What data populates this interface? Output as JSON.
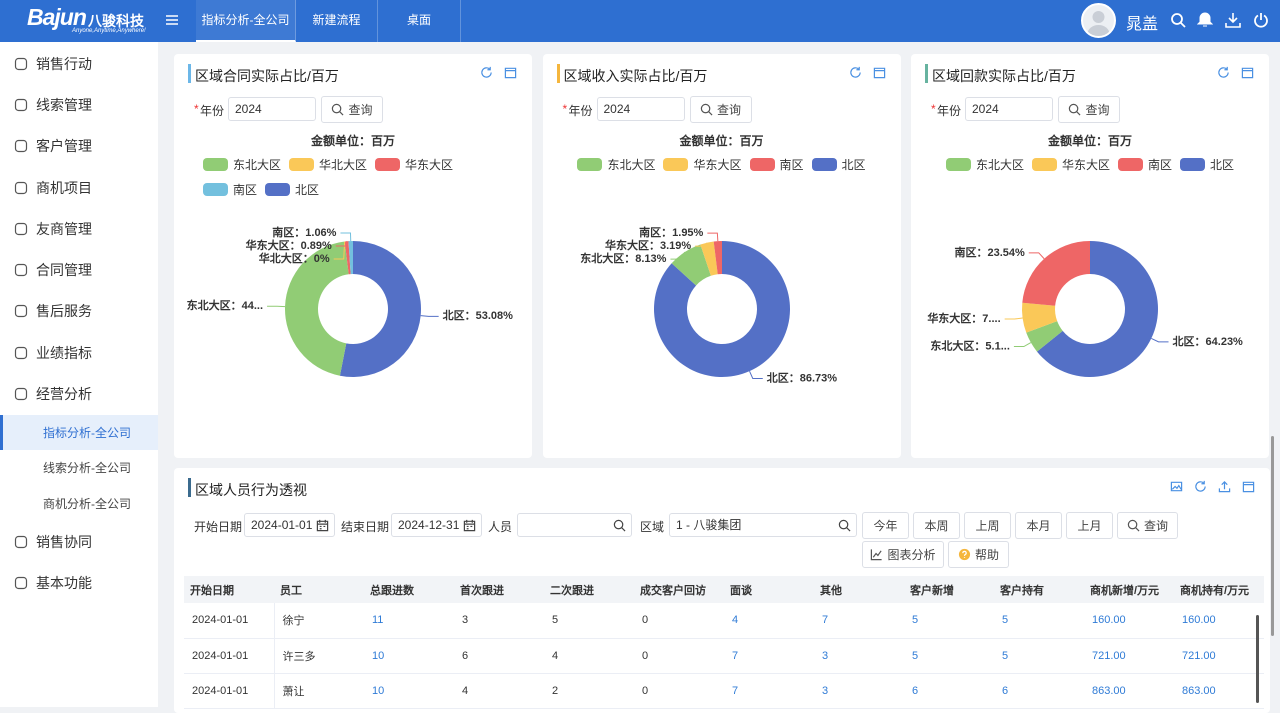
{
  "header": {
    "logo": "Bajun",
    "logo_cn": "八骏科技",
    "slogan": "Anyone,Anytime,Anywhere!",
    "tabs": [
      "指标分析-全公司",
      "新建流程",
      "桌面"
    ],
    "user": "晁盖"
  },
  "sidebar": {
    "menu": [
      {
        "label": "销售行动"
      },
      {
        "label": "线索管理"
      },
      {
        "label": "客户管理"
      },
      {
        "label": "商机项目"
      },
      {
        "label": "友商管理"
      },
      {
        "label": "合同管理"
      },
      {
        "label": "售后服务"
      },
      {
        "label": "业绩指标"
      },
      {
        "label": "经营分析",
        "children": [
          "指标分析-全公司",
          "线索分析-全公司",
          "商机分析-全公司"
        ]
      },
      {
        "label": "销售协同"
      },
      {
        "label": "基本功能"
      }
    ]
  },
  "filters": [
    {
      "required": "*",
      "year_label": "年份",
      "year": "2024",
      "query": "查询"
    },
    {
      "required": "*",
      "year_label": "年份",
      "year": "2024",
      "query": "查询"
    },
    {
      "required": "*",
      "year_label": "年份",
      "year": "2024",
      "query": "查询"
    }
  ],
  "chart_data": [
    {
      "type": "pie",
      "title": "区域合同实际占比/百万",
      "subtitle": "金额单位：百万",
      "categories": [
        "北区",
        "东北大区",
        "华北大区",
        "华东大区",
        "南区"
      ],
      "values": [
        53.08,
        44.97,
        0,
        0.89,
        1.06
      ],
      "value_labels": [
        "北区：53.08%",
        "东北大区：44...",
        "华北大区：0%",
        "华东大区：0.89%",
        "南区：1.06%"
      ],
      "colors": [
        "#5470c6",
        "#91cc75",
        "#fac858",
        "#ee6666",
        "#73c0de"
      ],
      "legend": [
        "东北大区",
        "华北大区",
        "华东大区",
        "南区",
        "北区"
      ]
    },
    {
      "type": "pie",
      "title": "区域收入实际占比/百万",
      "subtitle": "金额单位：百万",
      "categories": [
        "北区",
        "东北大区",
        "华东大区",
        "南区"
      ],
      "values": [
        86.73,
        8.13,
        3.19,
        1.95
      ],
      "value_labels": [
        "北区：86.73%",
        "东北大区：8.13%",
        "华东大区：3.19%",
        "南区：1.95%"
      ],
      "colors": [
        "#5470c6",
        "#91cc75",
        "#fac858",
        "#ee6666"
      ],
      "legend": [
        "东北大区",
        "华东大区",
        "南区",
        "北区"
      ]
    },
    {
      "type": "pie",
      "title": "区域回款实际占比/百万",
      "subtitle": "金额单位：百万",
      "categories": [
        "北区",
        "东北大区",
        "华东大区",
        "南区"
      ],
      "values": [
        64.23,
        5.11,
        7.12,
        23.54
      ],
      "value_labels": [
        "北区：64.23%",
        "东北大区：5.1...",
        "华东大区：7....",
        "南区：23.54%"
      ],
      "colors": [
        "#5470c6",
        "#91cc75",
        "#fac858",
        "#ee6666"
      ],
      "legend": [
        "东北大区",
        "华东大区",
        "南区",
        "北区"
      ]
    }
  ],
  "table": {
    "title": "区域人员行为透视",
    "filters": [
      {
        "label": "开始日期",
        "value": "2024-01-01"
      },
      {
        "label": "结束日期",
        "value": "2024-12-31"
      },
      {
        "label": "人员"
      },
      {
        "label": "区域",
        "value": "1 - 八骏集团"
      }
    ],
    "buttons": [
      "今年",
      "本周",
      "上周",
      "本月",
      "上月",
      "查询",
      "图表分析",
      "帮助"
    ],
    "columns": [
      "开始日期",
      "员工",
      "总跟进数",
      "首次跟进",
      "二次跟进",
      "成交客户回访",
      "面谈",
      "其他",
      "客户新增",
      "客户持有",
      "商机新增/万元",
      "商机持有/万元"
    ],
    "rows": [
      [
        "2024-01-01",
        "徐宁",
        "11",
        "3",
        "5",
        "0",
        "4",
        "7",
        "5",
        "5",
        "160.00",
        "160.00"
      ],
      [
        "2024-01-01",
        "许三多",
        "10",
        "6",
        "4",
        "0",
        "7",
        "3",
        "5",
        "5",
        "721.00",
        "721.00"
      ],
      [
        "2024-01-01",
        "萧让",
        "10",
        "4",
        "2",
        "0",
        "7",
        "3",
        "6",
        "6",
        "863.00",
        "863.00"
      ]
    ]
  }
}
